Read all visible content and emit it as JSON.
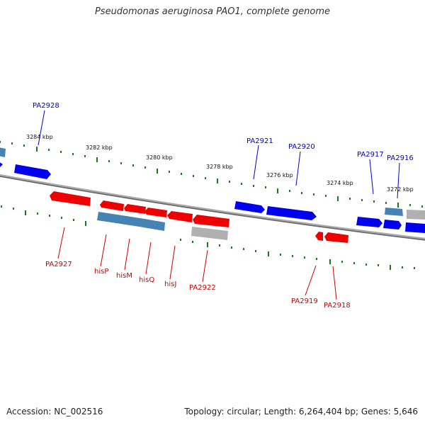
{
  "title": "Pseudomonas aeruginosa PAO1, complete genome",
  "footer": {
    "accession": "Accession: NC_002516",
    "topology": "Topology: circular; Length: 6,264,404 bp; Genes: 5,646"
  },
  "colors": {
    "forward_gene": "#0000ee",
    "reverse_gene": "#ee0000",
    "operon_gene": "#4682b4",
    "other_gene": "#b0b0b0",
    "forward_label": "#0000cc",
    "reverse_label": "#cc0000",
    "ticks": "#1a7a1a",
    "backbone": "#888888"
  },
  "scale_labels": [
    "3284 kbp",
    "3282 kbp",
    "3280 kbp",
    "3278 kbp",
    "3276 kbp",
    "3274 kbp",
    "3272 kbp"
  ],
  "forward_labels": [
    "PA2928",
    "PA2921",
    "PA2920",
    "PA2917",
    "PA2916"
  ],
  "reverse_labels": [
    "PA2927",
    "hisP",
    "hisM",
    "hisQ",
    "hisJ",
    "PA2922",
    "PA2919",
    "PA2918"
  ]
}
